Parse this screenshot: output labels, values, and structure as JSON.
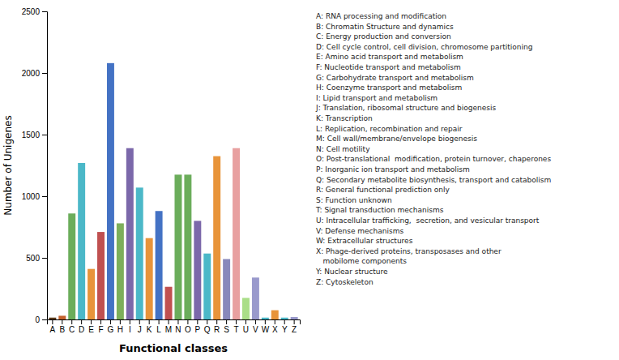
{
  "chart_data": {
    "type": "bar",
    "xlabel": "Functional classes",
    "ylabel": "Number of Unigenes",
    "categories": [
      "A",
      "B",
      "C",
      "D",
      "E",
      "F",
      "G",
      "H",
      "I",
      "J",
      "K",
      "L",
      "M",
      "N",
      "O",
      "P",
      "Q",
      "R",
      "S",
      "T",
      "U",
      "V",
      "W",
      "X",
      "Y",
      "Z"
    ],
    "values": [
      15,
      30,
      860,
      1270,
      410,
      710,
      2080,
      780,
      1390,
      1070,
      660,
      880,
      265,
      1175,
      1175,
      800,
      535,
      1325,
      490,
      1390,
      175,
      340,
      15,
      75,
      15,
      20
    ],
    "colors": [
      "#5B3A1A",
      "#C4622D",
      "#6BAD5B",
      "#4BB8C8",
      "#E8943A",
      "#C05050",
      "#4472C4",
      "#7DAF5B",
      "#7B68AA",
      "#4BB8C8",
      "#E8943A",
      "#4472C4",
      "#C05050",
      "#6BAD5B",
      "#6BAD5B",
      "#7B68AA",
      "#4BB8C8",
      "#E8943A",
      "#8888BB",
      "#E8A0A0",
      "#AADE88",
      "#9999CC",
      "#4BB8C8",
      "#E8943A",
      "#4BB8C8",
      "#9999CC"
    ],
    "ylim": [
      0,
      2500
    ],
    "yticks": [
      0,
      500,
      1000,
      1500,
      2000,
      2500
    ],
    "grid": false,
    "annotations": [
      "A: RNA processing and modification",
      "B: Chromatin Structure and dynamics",
      "C: Energy production and conversion",
      "D: Cell cycle control, cell division, chromosome partitioning",
      "E: Amino acid transport and metabolism",
      "F: Nucleotide transport and metabolism",
      "G: Carbohydrate transport and metabolism",
      "H: Coenzyme transport and metabolism",
      "I: Lipid transport and metabolism",
      "J: Translation, ribosomal structure and biogenesis",
      "K: Transcription",
      "L: Replication, recombination and repair",
      "M: Cell wall/membrane/envelope biogenesis",
      "N: Cell motility",
      "O: Post-translational  modification, protein turnover, chaperones",
      "P: Inorganic ion transport and metabolism",
      "Q: Secondary metabolite biosynthesis, transport and catabolism",
      "R: General functional prediction only",
      "S: Function unknown",
      "T: Signal transduction mechanisms",
      "U: Intracellular trafficking,  secretion, and vesicular transport",
      "V: Defense mechanisms",
      "W: Extracellular structures",
      "X: Phage-derived proteins, transposases and other",
      "   mobilome components",
      "Y: Nuclear structure",
      "Z: Cytoskeleton"
    ]
  }
}
